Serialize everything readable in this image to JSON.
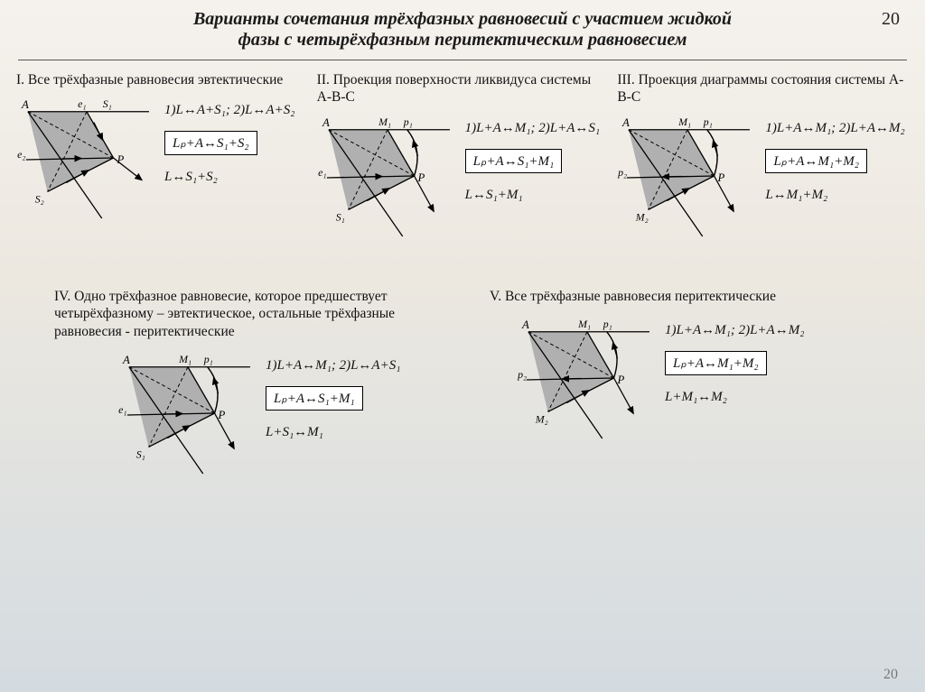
{
  "page_number_top": "20",
  "page_number_bottom": "20",
  "title_line1": "Варианты сочетания трёхфазных равновесий с участием жидкой",
  "title_line2": "фазы с четырёхфазным перитектическим равновесием",
  "colors": {
    "bg_top": "#f5f2ed",
    "bg_bottom": "#d4dbe0",
    "fill": "#b0b0b0",
    "stroke": "#000000",
    "dash": "#000000",
    "text": "#111111"
  },
  "variants": [
    {
      "roman": "I.",
      "heading": "Все трёхфазные равновесия эвтектические",
      "eq_top": "1)L↔A+S₁; 2)L↔A+S₂",
      "eq_box": "Lₚ+A↔S₁+S₂",
      "eq_bot": "L↔S₁+S₂",
      "diagram": {
        "top_label": "e₁",
        "top_label2": "S₁",
        "left_label": "e₂",
        "bot_label": "S₂",
        "arrow_top": "down",
        "arrow_left": "right",
        "right_arc": false
      }
    },
    {
      "roman": "II.",
      "heading": "Проекция поверхности ликвидуса системы A-B-C",
      "eq_top": "1)L+A↔M₁; 2)L+A↔S₁",
      "eq_box": "Lₚ+A↔S₁+M₁",
      "eq_bot": "L↔S₁+M₁",
      "diagram": {
        "top_label": "M₁",
        "top_label2": "p₁",
        "left_label": "e₁",
        "bot_label": "S₁",
        "arrow_top": "up",
        "arrow_left": "right",
        "right_arc": true
      }
    },
    {
      "roman": "III.",
      "heading": "Проекция диаграммы состояния системы A-B-C",
      "eq_top": "1)L+A↔M₁; 2)L+A↔M₂",
      "eq_box": "Lₚ+A↔M₁+M₂",
      "eq_bot": "L↔M₁+M₂",
      "diagram": {
        "top_label": "M₁",
        "top_label2": "p₁",
        "left_label": "p₂",
        "bot_label": "M₂",
        "arrow_top": "up",
        "arrow_left": "left",
        "right_arc": true
      }
    },
    {
      "roman": "IV.",
      "heading": "Одно трёхфазное равновесие, которое предшествует четырёхфазному – эвтектическое, остальные трёхфазные равновесия - перитектические",
      "eq_top": "1)L+A↔M₁; 2)L↔A+S₁",
      "eq_box": "Lₚ+A↔S₁+M₁",
      "eq_bot": "L+S₁↔M₁",
      "diagram": {
        "top_label": "M₁",
        "top_label2": "p₁",
        "left_label": "e₁",
        "bot_label": "S₁",
        "arrow_top": "up",
        "arrow_left": "right",
        "right_arc": true
      }
    },
    {
      "roman": "V.",
      "heading": "Все трёхфазные равновесия перитектические",
      "eq_top": "1)L+A↔M₁; 2)L+A↔M₂",
      "eq_box": "Lₚ+A↔M₁+M₂",
      "eq_bot": "L+M₁↔M₂",
      "diagram": {
        "top_label": "M₁",
        "top_label2": "p₁",
        "left_label": "p₂",
        "bot_label": "M₂",
        "arrow_top": "up",
        "arrow_left": "left",
        "right_arc": true
      }
    }
  ]
}
